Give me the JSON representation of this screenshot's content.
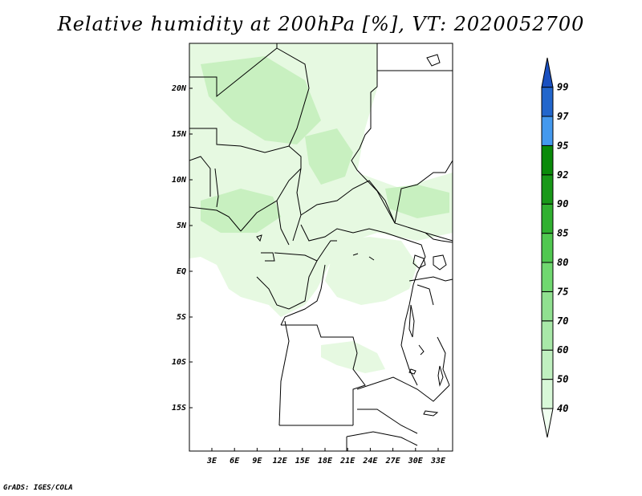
{
  "title": "Relative humidity at 200hPa [%], VT: 2020052700",
  "footer": "GrADS: IGES/COLA",
  "map": {
    "lat_ticks": [
      "20N",
      "15N",
      "10N",
      "5N",
      "EQ",
      "5S",
      "10S",
      "15S"
    ],
    "lon_ticks": [
      "3E",
      "6E",
      "9E",
      "12E",
      "15E",
      "18E",
      "21E",
      "24E",
      "27E",
      "30E",
      "33E"
    ],
    "lon_range": [
      0,
      35
    ],
    "lat_range": [
      -20,
      25
    ]
  },
  "colorbar": {
    "levels": [
      "40",
      "50",
      "60",
      "70",
      "75",
      "80",
      "85",
      "90",
      "92",
      "95",
      "97",
      "99"
    ],
    "colors": [
      "#f0fff0",
      "#d8f8d8",
      "#c0f0c0",
      "#a8e8a8",
      "#90e090",
      "#70d870",
      "#50c850",
      "#30b030",
      "#189818",
      "#0a8a0a",
      "#4499ee",
      "#2266cc",
      "#1a50c0"
    ]
  },
  "colors": {
    "humid_light": "#e6f9e1",
    "humid_mid": "#c8f0c0",
    "humid_strong": "#aee4a4",
    "border": "#000000"
  }
}
